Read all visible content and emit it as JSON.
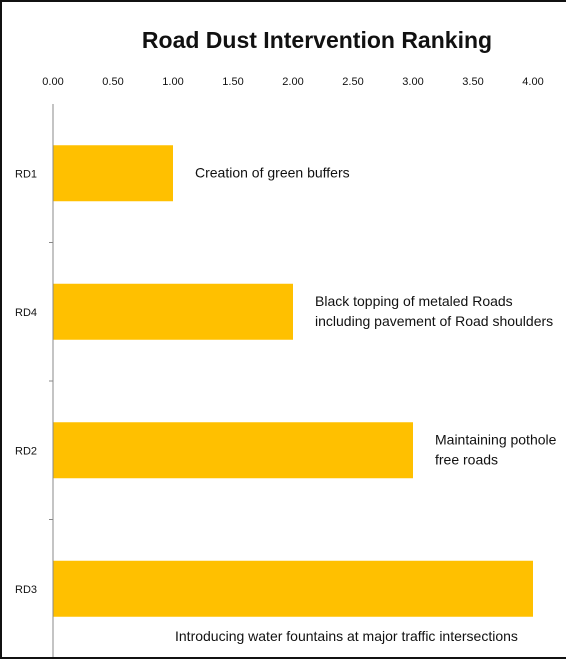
{
  "chart_data": {
    "type": "bar",
    "orientation": "horizontal",
    "title": "Road Dust Intervention Ranking",
    "xlabel": "",
    "ylabel": "",
    "xlim": [
      0,
      4.5
    ],
    "x_ticks": [
      "0.00",
      "0.50",
      "1.00",
      "1.50",
      "2.00",
      "2.50",
      "3.00",
      "3.50",
      "4.00"
    ],
    "x_axis_position": "top",
    "grid": false,
    "legend": "none",
    "bar_color": "#FFC000",
    "categories": [
      "RD1",
      "RD4",
      "RD2",
      "RD3"
    ],
    "values": [
      1,
      2,
      3,
      4
    ],
    "annotations": [
      [
        "Creation of green buffers"
      ],
      [
        "Black topping of metaled Roads",
        "including pavement of Road shoulders"
      ],
      [
        "Maintaining pothole",
        "free roads"
      ],
      [
        "Introducing water fountains at major traffic intersections"
      ]
    ]
  }
}
